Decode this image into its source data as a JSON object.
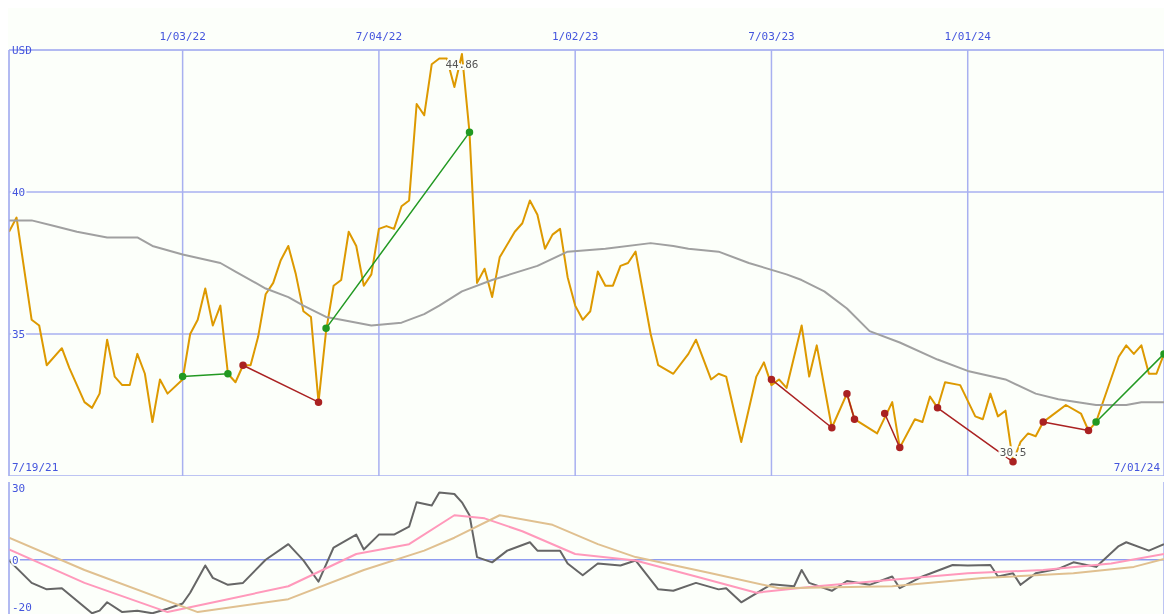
{
  "chart_data": [
    {
      "type": "line",
      "ylabel": "USD",
      "xlim": [
        "2021-07-26",
        "2024-07-01"
      ],
      "xticks": [
        {
          "value": "2022-01-03",
          "label": "1/03/22"
        },
        {
          "value": "2022-07-04",
          "label": "7/04/22"
        },
        {
          "value": "2023-01-02",
          "label": "1/02/23"
        },
        {
          "value": "2023-07-03",
          "label": "7/03/23"
        },
        {
          "value": "2024-01-01",
          "label": "1/01/24"
        }
      ],
      "ylim": [
        30,
        45
      ],
      "yticks": [
        35,
        40
      ],
      "grid": true,
      "marker": "none",
      "annotations": [
        "7/19/21",
        "7/01/24",
        {
          "text": "44.86",
          "x": "2022-09-19",
          "y": 44.86
        },
        {
          "text": "30.5",
          "x": "2024-02-12",
          "y": 30.5
        }
      ],
      "series": [
        {
          "color": "#dd9900",
          "x": [
            "2021-07-26",
            "2021-08-02",
            "2021-08-16",
            "2021-08-23",
            "2021-08-30",
            "2021-09-13",
            "2021-09-20",
            "2021-10-04",
            "2021-10-11",
            "2021-10-18",
            "2021-10-25",
            "2021-11-01",
            "2021-11-08",
            "2021-11-15",
            "2021-11-22",
            "2021-11-29",
            "2021-12-06",
            "2021-12-13",
            "2021-12-20",
            "2022-01-03",
            "2022-01-10",
            "2022-01-17",
            "2022-01-24",
            "2022-01-31",
            "2022-02-07",
            "2022-02-14",
            "2022-02-21",
            "2022-02-28",
            "2022-03-07",
            "2022-03-14",
            "2022-03-21",
            "2022-03-28",
            "2022-04-04",
            "2022-04-11",
            "2022-04-18",
            "2022-04-25",
            "2022-05-02",
            "2022-05-09",
            "2022-05-16",
            "2022-05-23",
            "2022-05-30",
            "2022-06-06",
            "2022-06-13",
            "2022-06-20",
            "2022-06-27",
            "2022-07-04",
            "2022-07-11",
            "2022-07-18",
            "2022-07-25",
            "2022-08-01",
            "2022-08-08",
            "2022-08-15",
            "2022-08-22",
            "2022-08-29",
            "2022-09-05",
            "2022-09-12",
            "2022-09-19",
            "2022-09-26",
            "2022-10-03",
            "2022-10-10",
            "2022-10-17",
            "2022-10-24",
            "2022-11-07",
            "2022-11-14",
            "2022-11-21",
            "2022-11-28",
            "2022-12-05",
            "2022-12-12",
            "2022-12-19",
            "2022-12-26",
            "2023-01-02",
            "2023-01-09",
            "2023-01-16",
            "2023-01-23",
            "2023-01-30",
            "2023-02-06",
            "2023-02-13",
            "2023-02-20",
            "2023-02-27",
            "2023-03-13",
            "2023-03-20",
            "2023-04-03",
            "2023-04-17",
            "2023-04-24",
            "2023-05-08",
            "2023-05-15",
            "2023-05-22",
            "2023-06-05",
            "2023-06-19",
            "2023-06-26",
            "2023-07-03",
            "2023-07-10",
            "2023-07-17",
            "2023-07-31",
            "2023-08-07",
            "2023-08-14",
            "2023-08-28",
            "2023-09-11",
            "2023-09-18",
            "2023-10-09",
            "2023-10-23",
            "2023-10-30",
            "2023-11-13",
            "2023-11-20",
            "2023-11-27",
            "2023-12-04",
            "2023-12-11",
            "2023-12-25",
            "2024-01-08",
            "2024-01-15",
            "2024-01-22",
            "2024-01-29",
            "2024-02-05",
            "2024-02-12",
            "2024-02-19",
            "2024-02-26",
            "2024-03-04",
            "2024-03-11",
            "2024-03-18",
            "2024-04-01",
            "2024-04-15",
            "2024-04-22",
            "2024-04-29",
            "2024-05-20",
            "2024-05-27",
            "2024-06-03",
            "2024-06-10",
            "2024-06-17",
            "2024-06-24",
            "2024-07-01"
          ],
          "values": [
            38.6,
            39.1,
            35.5,
            35.3,
            33.9,
            34.5,
            33.8,
            32.6,
            32.4,
            32.9,
            34.8,
            33.5,
            33.2,
            33.2,
            34.3,
            33.6,
            31.9,
            33.4,
            32.9,
            33.4,
            35.0,
            35.5,
            36.6,
            35.3,
            36.0,
            33.6,
            33.3,
            33.9,
            33.9,
            34.9,
            36.4,
            36.8,
            37.6,
            38.1,
            37.1,
            35.8,
            35.6,
            32.6,
            35.1,
            36.7,
            36.9,
            38.6,
            38.1,
            36.7,
            37.1,
            38.7,
            38.8,
            38.7,
            39.5,
            39.7,
            43.1,
            42.7,
            44.5,
            44.7,
            44.7,
            43.7,
            44.86,
            42.1,
            36.8,
            37.3,
            36.3,
            37.7,
            38.6,
            38.9,
            39.7,
            39.2,
            38.0,
            38.5,
            38.7,
            37.0,
            36.0,
            35.5,
            35.8,
            37.2,
            36.7,
            36.7,
            37.4,
            37.5,
            37.9,
            35.0,
            33.9,
            33.6,
            34.3,
            34.8,
            33.4,
            33.6,
            33.5,
            31.2,
            33.5,
            34.0,
            33.2,
            33.4,
            33.1,
            35.3,
            33.5,
            34.6,
            31.7,
            32.9,
            32.0,
            31.5,
            32.6,
            31.0,
            32.0,
            31.9,
            32.8,
            32.4,
            33.3,
            33.2,
            32.1,
            32.0,
            32.9,
            32.1,
            32.3,
            30.5,
            31.2,
            31.5,
            31.4,
            31.9,
            32.1,
            32.5,
            32.2,
            31.6,
            31.9,
            34.2,
            34.6,
            34.3,
            34.6,
            33.6,
            33.6,
            34.3
          ]
        },
        {
          "color": "#a0a0a0",
          "x": [
            "2021-07-26",
            "2021-08-16",
            "2021-09-06",
            "2021-09-27",
            "2021-10-25",
            "2021-11-22",
            "2021-12-06",
            "2022-01-03",
            "2022-02-07",
            "2022-02-21",
            "2022-03-21",
            "2022-04-11",
            "2022-04-25",
            "2022-05-16",
            "2022-05-30",
            "2022-06-27",
            "2022-07-25",
            "2022-08-15",
            "2022-08-29",
            "2022-09-19",
            "2022-10-17",
            "2022-11-28",
            "2022-12-26",
            "2023-01-30",
            "2023-03-13",
            "2023-04-03",
            "2023-04-17",
            "2023-05-15",
            "2023-06-12",
            "2023-07-17",
            "2023-07-31",
            "2023-08-21",
            "2023-09-11",
            "2023-10-02",
            "2023-10-30",
            "2023-12-04",
            "2024-01-01",
            "2024-02-05",
            "2024-03-04",
            "2024-03-25",
            "2024-04-29",
            "2024-05-27",
            "2024-06-10",
            "2024-07-01"
          ],
          "values": [
            39.0,
            39.0,
            38.8,
            38.6,
            38.4,
            38.4,
            38.1,
            37.8,
            37.5,
            37.2,
            36.6,
            36.3,
            36.0,
            35.6,
            35.5,
            35.3,
            35.4,
            35.7,
            36.0,
            36.5,
            36.9,
            37.4,
            37.9,
            38.0,
            38.2,
            38.1,
            38.0,
            37.9,
            37.5,
            37.1,
            36.9,
            36.5,
            35.9,
            35.1,
            34.7,
            34.1,
            33.7,
            33.4,
            32.9,
            32.7,
            32.5,
            32.5,
            32.6,
            32.6
          ]
        },
        {
          "color": "#229922",
          "marker": "circle",
          "x": [
            "2022-01-03",
            "2022-02-14",
            "2022-04-04",
            "2022-05-16",
            "2022-09-26",
            "2023-06-26",
            "2024-04-29",
            "2024-07-01"
          ],
          "values": [
            33.5,
            33.6,
            null,
            35.2,
            42.1,
            null,
            31.9,
            34.3
          ]
        },
        {
          "color": "#aa2222",
          "marker": "circle",
          "x": [
            "2022-02-28",
            "2022-05-09",
            "2022-11-28",
            "2023-07-03",
            "2023-08-28",
            "2023-09-04",
            "2023-09-11",
            "2023-09-18",
            "2023-10-02",
            "2023-10-16",
            "2023-10-30",
            "2023-11-13",
            "2023-12-04",
            "2024-02-12",
            "2024-02-26",
            "2024-03-11",
            "2024-04-22"
          ],
          "values": [
            33.9,
            32.6,
            null,
            33.4,
            31.7,
            null,
            32.9,
            32.0,
            null,
            32.2,
            31.0,
            null,
            32.4,
            30.5,
            null,
            31.9,
            31.6
          ]
        }
      ]
    },
    {
      "type": "line",
      "xlim": [
        "2021-07-26",
        "2024-07-01"
      ],
      "xticks": [
        {
          "value": "2022-01-03",
          "label": null
        },
        {
          "value": "2022-07-04",
          "label": null
        },
        {
          "value": "2023-01-02",
          "label": null
        },
        {
          "value": "2023-07-03",
          "label": null
        },
        {
          "value": "2024-01-01",
          "label": null
        }
      ],
      "ylim": [
        -22.7,
        32.5
      ],
      "yticks": [
        30,
        0,
        -20
      ],
      "grid": "x",
      "marker": "none",
      "tick_labels": "y",
      "ref_lines": [
        {
          "axis": "y",
          "value": 0,
          "color": "#8f9cf0"
        }
      ],
      "series": [
        {
          "color": "#666666",
          "x": [
            "2021-07-26",
            "2021-08-16",
            "2021-08-30",
            "2021-09-13",
            "2021-10-11",
            "2021-10-18",
            "2021-10-25",
            "2021-11-08",
            "2021-11-22",
            "2021-12-06",
            "2021-12-20",
            "2022-01-03",
            "2022-01-10",
            "2022-01-24",
            "2022-01-31",
            "2022-02-14",
            "2022-02-28",
            "2022-03-21",
            "2022-04-11",
            "2022-04-25",
            "2022-05-09",
            "2022-05-23",
            "2022-06-13",
            "2022-06-20",
            "2022-07-04",
            "2022-07-18",
            "2022-08-01",
            "2022-08-08",
            "2022-08-22",
            "2022-08-29",
            "2022-09-12",
            "2022-09-19",
            "2022-09-26",
            "2022-10-03",
            "2022-10-17",
            "2022-10-31",
            "2022-11-21",
            "2022-11-28",
            "2022-12-19",
            "2022-12-26",
            "2023-01-09",
            "2023-01-23",
            "2023-02-13",
            "2023-02-27",
            "2023-03-20",
            "2023-04-03",
            "2023-04-24",
            "2023-05-15",
            "2023-05-22",
            "2023-06-05",
            "2023-07-03",
            "2023-07-24",
            "2023-07-31",
            "2023-08-07",
            "2023-08-28",
            "2023-09-11",
            "2023-10-02",
            "2023-10-23",
            "2023-10-30",
            "2023-11-20",
            "2023-12-18",
            "2024-01-01",
            "2024-01-22",
            "2024-01-29",
            "2024-02-12",
            "2024-02-19",
            "2024-03-04",
            "2024-03-25",
            "2024-04-08",
            "2024-04-29",
            "2024-05-20",
            "2024-05-27",
            "2024-06-17",
            "2024-07-01"
          ],
          "values": [
            -0.3,
            -9.7,
            -12.4,
            -11.9,
            -22.4,
            -21.3,
            -17.8,
            -21.9,
            -21.3,
            -22.4,
            -20.5,
            -18.3,
            -13.8,
            -2.4,
            -7.6,
            -10.5,
            -9.7,
            0,
            6.5,
            -0.3,
            -9.2,
            5.1,
            10.5,
            4.3,
            10.5,
            10.5,
            13.8,
            24.0,
            22.7,
            28.1,
            27.5,
            24.0,
            18.6,
            1.1,
            -1.1,
            3.8,
            7.3,
            3.8,
            3.8,
            -1.6,
            -6.5,
            -1.6,
            -2.4,
            -0.3,
            -12.4,
            -13.0,
            -9.7,
            -12.4,
            -11.9,
            -17.8,
            -10.3,
            -11.1,
            -4.3,
            -9.7,
            -13.0,
            -8.9,
            -10.5,
            -7.0,
            -11.9,
            -7.0,
            -2.2,
            -2.4,
            -2.2,
            -7.0,
            -5.7,
            -10.5,
            -5.7,
            -3.8,
            -1.1,
            -3.0,
            5.7,
            7.3,
            3.8,
            6.5
          ]
        },
        {
          "color": "#ff99bb",
          "x": [
            "2021-07-26",
            "2021-10-04",
            "2021-12-20",
            "2022-02-14",
            "2022-04-11",
            "2022-06-13",
            "2022-08-01",
            "2022-09-12",
            "2022-10-10",
            "2022-11-14",
            "2023-01-02",
            "2023-02-27",
            "2023-04-24",
            "2023-06-19",
            "2023-08-14",
            "2024-01-01",
            "2024-03-11",
            "2024-05-13",
            "2024-07-01"
          ],
          "values": [
            4.3,
            -9.7,
            -21.9,
            -16.5,
            -11.1,
            2.4,
            6.5,
            18.6,
            17.3,
            11.9,
            2.4,
            -0.3,
            -7.0,
            -13.8,
            -11.1,
            -5.7,
            -4.3,
            -1.6,
            2.4
          ]
        },
        {
          "color": "#e0c090",
          "x": [
            "2021-07-26",
            "2021-10-04",
            "2022-01-17",
            "2022-04-11",
            "2022-06-20",
            "2022-08-15",
            "2022-09-12",
            "2022-10-24",
            "2022-12-12",
            "2023-01-23",
            "2023-02-27",
            "2023-05-08",
            "2023-07-10",
            "2023-10-23",
            "2024-01-15",
            "2024-04-08",
            "2024-06-03",
            "2024-07-01"
          ],
          "values": [
            9.2,
            -4.3,
            -21.9,
            -16.5,
            -4.3,
            3.8,
            9.2,
            18.6,
            14.6,
            6.5,
            1.1,
            -5.7,
            -11.9,
            -11.1,
            -7.6,
            -5.7,
            -3.0,
            0.3
          ]
        }
      ]
    }
  ]
}
